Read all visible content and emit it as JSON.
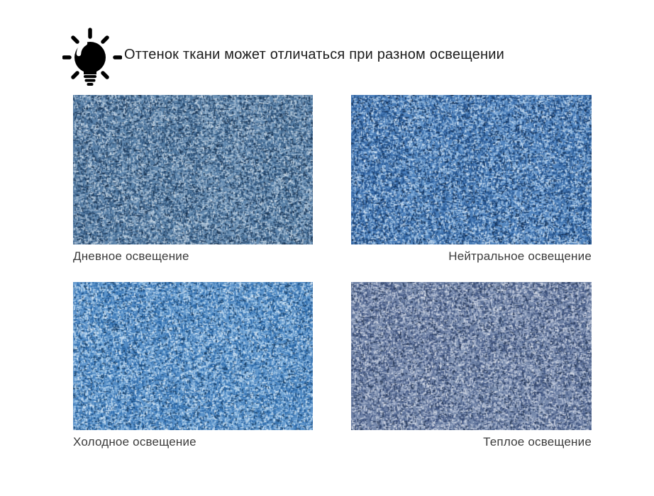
{
  "header": {
    "icon": "lightbulb-icon",
    "text": "Оттенок ткани может отличаться при разном освещении"
  },
  "swatches": [
    {
      "id": "daylight",
      "label": "Дневное освещение",
      "label_align": "left",
      "palette": [
        "#16304f",
        "#2c5179",
        "#5e86ad",
        "#a3bbd2",
        "#cfdde9"
      ]
    },
    {
      "id": "neutral",
      "label": "Нейтральное освещение",
      "label_align": "right",
      "palette": [
        "#122f55",
        "#1f4e8a",
        "#4f83be",
        "#9fc2e4",
        "#d3e4f4"
      ]
    },
    {
      "id": "cold",
      "label": "Холодное освещение",
      "label_align": "left",
      "palette": [
        "#143c66",
        "#2766a8",
        "#5b93ca",
        "#abceeb",
        "#dcebf8"
      ]
    },
    {
      "id": "warm",
      "label": "Теплое освещение",
      "label_align": "right",
      "palette": [
        "#253757",
        "#3e5380",
        "#7487aa",
        "#b3bed4",
        "#dadfe9"
      ]
    }
  ],
  "colors": {
    "background": "#ffffff",
    "header_text": "#1c1c1c",
    "label_text": "#3b3b3b",
    "icon": "#000000"
  }
}
